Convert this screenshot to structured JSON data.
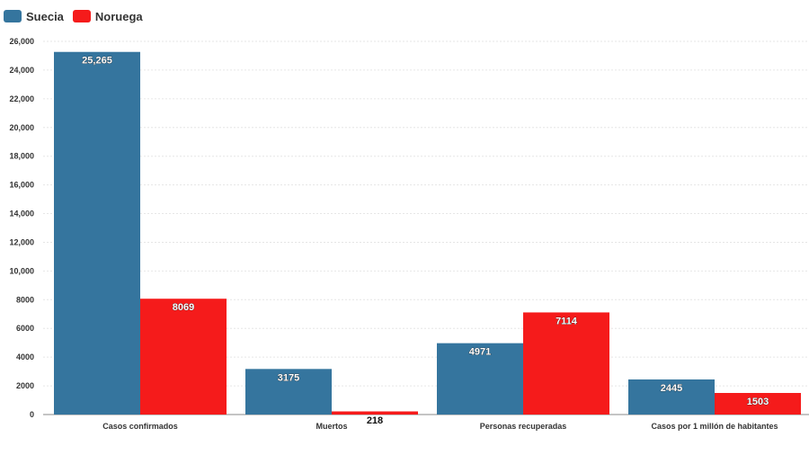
{
  "chart_data": {
    "type": "bar",
    "categories": [
      "Casos confirmados",
      "Muertos",
      "Personas recuperadas",
      "Casos por 1 millón de habitantes"
    ],
    "series": [
      {
        "name": "Suecia",
        "values": [
          25265,
          3175,
          4971,
          2445
        ],
        "labels": [
          "25,265",
          "3175",
          "4971",
          "2445"
        ],
        "color": "#35759e"
      },
      {
        "name": "Noruega",
        "values": [
          8069,
          218,
          7114,
          1503
        ],
        "labels": [
          "8069",
          "218",
          "7114",
          "1503"
        ],
        "color": "#f51b1b"
      }
    ],
    "yticks": [
      0,
      2000,
      4000,
      6000,
      8000,
      10000,
      12000,
      14000,
      16000,
      18000,
      20000,
      22000,
      24000,
      26000
    ],
    "ytick_labels": [
      "0",
      "2000",
      "4000",
      "6000",
      "8000",
      "10,000",
      "12,000",
      "14,000",
      "16,000",
      "18,000",
      "20,000",
      "22,000",
      "24,000",
      "26,000"
    ],
    "ylim": [
      0,
      26000
    ],
    "grid": true,
    "legend_position": "top-left"
  }
}
